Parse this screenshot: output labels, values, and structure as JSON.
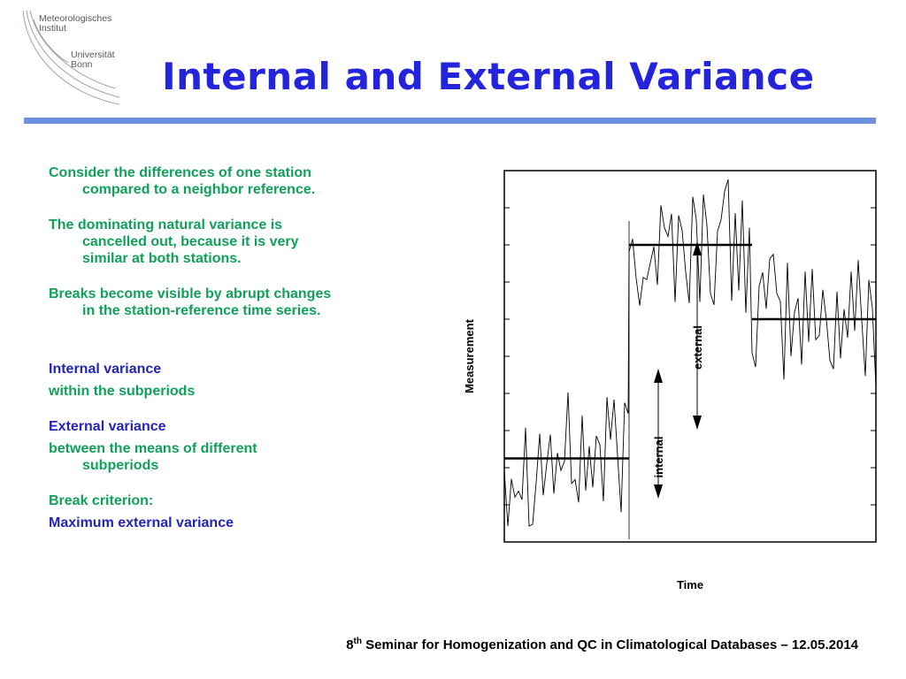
{
  "logo": {
    "line1": [
      "Meteorologisches",
      "Institut"
    ],
    "line2": [
      "Universität",
      "Bonn"
    ]
  },
  "title": "Internal and External Variance",
  "paragraphs": [
    {
      "line1": "Consider the differences of one station",
      "line2": "compared to a neighbor reference."
    },
    {
      "line1": "The dominating natural variance is",
      "line2a": "cancelled out, because it is very",
      "line2b": "similar at both stations."
    },
    {
      "line1": "Breaks become visible by abrupt changes",
      "line2": "in the station-reference time series."
    }
  ],
  "internal": {
    "heading": "Internal variance",
    "text": "within the subperiods"
  },
  "external": {
    "heading": "External variance",
    "text_a": "between the means of different",
    "text_b": "subperiods"
  },
  "criterion": {
    "heading": "Break criterion:",
    "text": "Maximum external variance"
  },
  "footer": {
    "ordinal": "8",
    "ordinal_suffix": "th",
    "text": " Seminar for Homogenization and QC in Climatological Databases – 12.05.2014"
  },
  "colors": {
    "title": "#2424dd",
    "rule": "#6f8fe0",
    "green": "#11a05a",
    "blue": "#2424b8"
  },
  "chart_data": {
    "type": "line",
    "xlabel": "Time",
    "ylabel": "Measurement",
    "annotations": [
      "internal",
      "external"
    ],
    "segments": [
      {
        "name": "",
        "mean": -0.55
      },
      {
        "name": "",
        "mean": 0.6
      },
      {
        "name": "",
        "mean": 0.2
      }
    ]
  }
}
